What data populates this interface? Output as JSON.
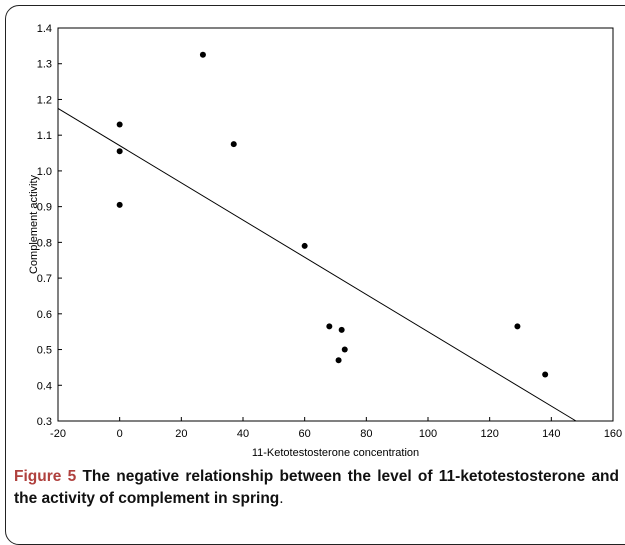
{
  "chart_data": {
    "type": "scatter",
    "title": "",
    "xlabel": "11-Ketotestosterone concentration",
    "ylabel": "Complement activity",
    "xlim": [
      -20,
      160
    ],
    "ylim": [
      0.3,
      1.4
    ],
    "x_ticks": [
      -20,
      0,
      20,
      40,
      60,
      80,
      100,
      120,
      140,
      160
    ],
    "y_ticks": [
      0.3,
      0.4,
      0.5,
      0.6,
      0.7,
      0.8,
      0.9,
      1.0,
      1.1,
      1.2,
      1.3,
      1.4
    ],
    "y_tick_labels": [
      "0.3",
      "0.4",
      "0.5",
      "0.6",
      "0.7",
      "0.8",
      "0.9",
      "1.0",
      "1.1",
      "1.2",
      "1.3",
      "1.4"
    ],
    "grid": false,
    "series": [
      {
        "points": [
          {
            "x": 0,
            "y": 1.13
          },
          {
            "x": 0,
            "y": 1.055
          },
          {
            "x": 0,
            "y": 0.905
          },
          {
            "x": 27,
            "y": 1.325
          },
          {
            "x": 37,
            "y": 1.075
          },
          {
            "x": 60,
            "y": 0.79
          },
          {
            "x": 68,
            "y": 0.565
          },
          {
            "x": 71,
            "y": 0.47
          },
          {
            "x": 72,
            "y": 0.555
          },
          {
            "x": 73,
            "y": 0.5
          },
          {
            "x": 129,
            "y": 0.565
          },
          {
            "x": 138,
            "y": 0.43
          }
        ],
        "color": "#000000"
      }
    ],
    "trendline": {
      "start": {
        "x": -20,
        "y": 1.175
      },
      "end": {
        "x": 148,
        "y": 0.3
      },
      "color": "#000000"
    }
  },
  "caption": {
    "lead": "Figure 5",
    "body": "The negative relationship between the level of 11-ketotestosterone and the activity of complement in spring",
    "end": "."
  }
}
